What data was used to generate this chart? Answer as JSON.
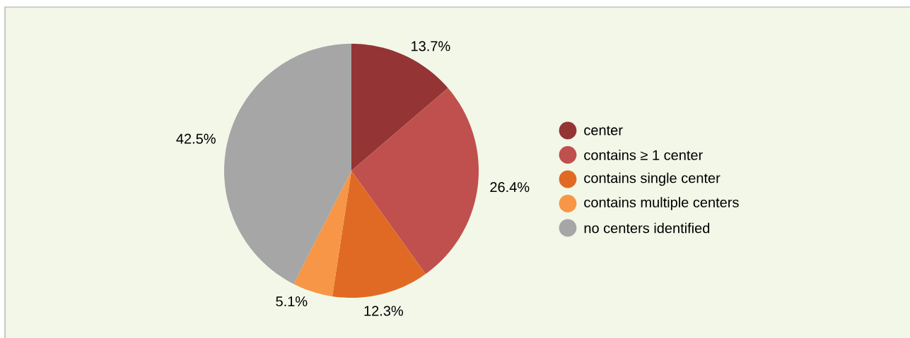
{
  "chart_data": {
    "type": "pie",
    "categories": [
      "center",
      "contains ≥ 1 center",
      "contains single center",
      "contains multiple centers",
      "no centers identified"
    ],
    "values": [
      13.7,
      26.4,
      12.3,
      5.1,
      42.5
    ],
    "value_labels": [
      "13.7%",
      "26.4%",
      "12.3%",
      "5.1%",
      "42.5%"
    ],
    "colors": [
      "#943434",
      "#c0504d",
      "#e06a24",
      "#f79646",
      "#a6a6a6"
    ],
    "legend": "right"
  }
}
